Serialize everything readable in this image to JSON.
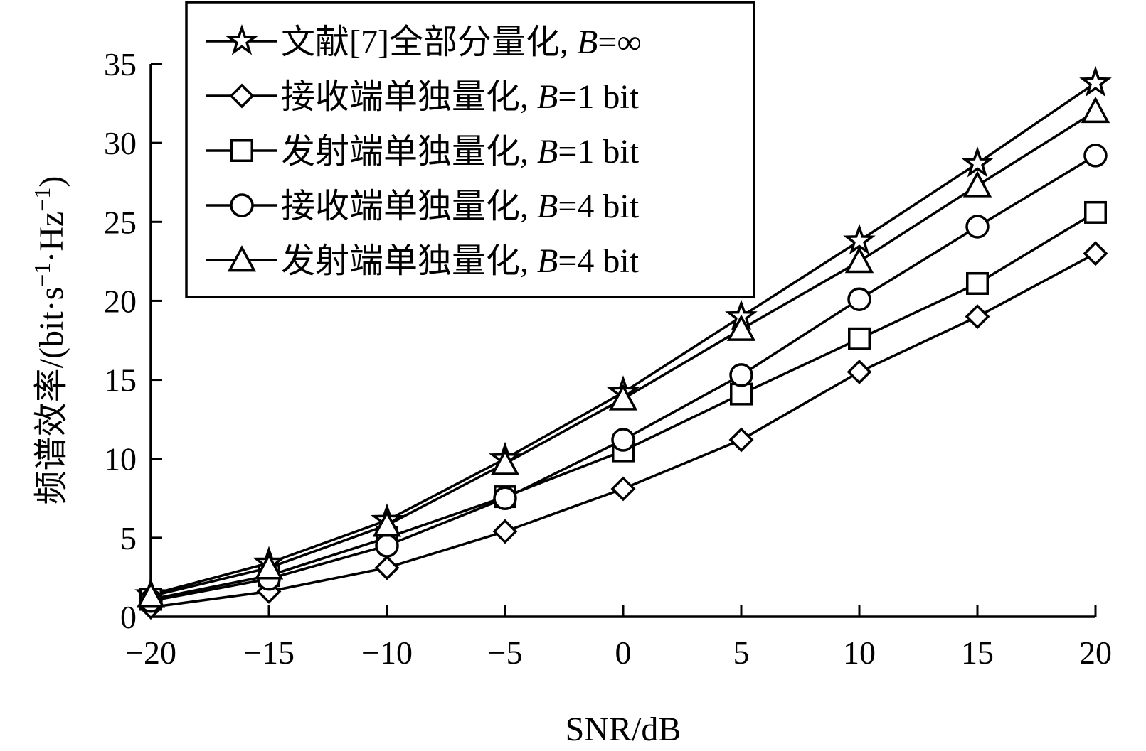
{
  "chart_data": {
    "type": "line",
    "xlabel": "SNR/dB",
    "ylabel": "频谱效率/(bit·s",
    "ylabel_sup1": "−1",
    "ylabel_mid": "·Hz",
    "ylabel_sup2": "−1",
    "ylabel_end": ")",
    "xlim": [
      -20,
      20
    ],
    "ylim": [
      0,
      35
    ],
    "x_ticks": [
      -20,
      -15,
      -10,
      -5,
      0,
      5,
      10,
      15,
      20
    ],
    "x_tick_labels": [
      "−20",
      "−15",
      "−10",
      "−5",
      "0",
      "5",
      "10",
      "15",
      "20"
    ],
    "y_ticks": [
      0,
      5,
      10,
      15,
      20,
      25,
      30,
      35
    ],
    "y_tick_labels": [
      "0",
      "5",
      "10",
      "15",
      "20",
      "25",
      "30",
      "35"
    ],
    "grid": false,
    "legend_position": "top-left",
    "x": [
      -20,
      -15,
      -10,
      -5,
      0,
      5,
      10,
      15,
      20
    ],
    "series": [
      {
        "name": "文献[7]全部分量化, ",
        "name_var": "B",
        "name_tail": "=∞",
        "marker": "star",
        "values": [
          1.4,
          3.4,
          6.1,
          10.0,
          14.2,
          19.0,
          23.8,
          28.7,
          33.8
        ]
      },
      {
        "name": "接收端单独量化, ",
        "name_var": "B",
        "name_tail": "=1 bit",
        "marker": "diamond",
        "values": [
          0.6,
          1.6,
          3.1,
          5.4,
          8.1,
          11.2,
          15.5,
          19.0,
          23.0
        ]
      },
      {
        "name": "发射端单独量化, ",
        "name_var": "B",
        "name_tail": "=1 bit",
        "marker": "square",
        "values": [
          1.1,
          2.6,
          5.0,
          7.6,
          10.5,
          14.1,
          17.6,
          21.1,
          25.6
        ]
      },
      {
        "name": "接收端单独量化, ",
        "name_var": "B",
        "name_tail": "=4 bit",
        "marker": "circle",
        "values": [
          1.0,
          2.4,
          4.5,
          7.5,
          11.2,
          15.3,
          20.1,
          24.7,
          29.2
        ]
      },
      {
        "name": "发射端单独量化, ",
        "name_var": "B",
        "name_tail": "=4 bit",
        "marker": "triangle",
        "values": [
          1.3,
          3.1,
          5.8,
          9.7,
          13.8,
          18.2,
          22.5,
          27.3,
          32.0
        ]
      }
    ]
  }
}
